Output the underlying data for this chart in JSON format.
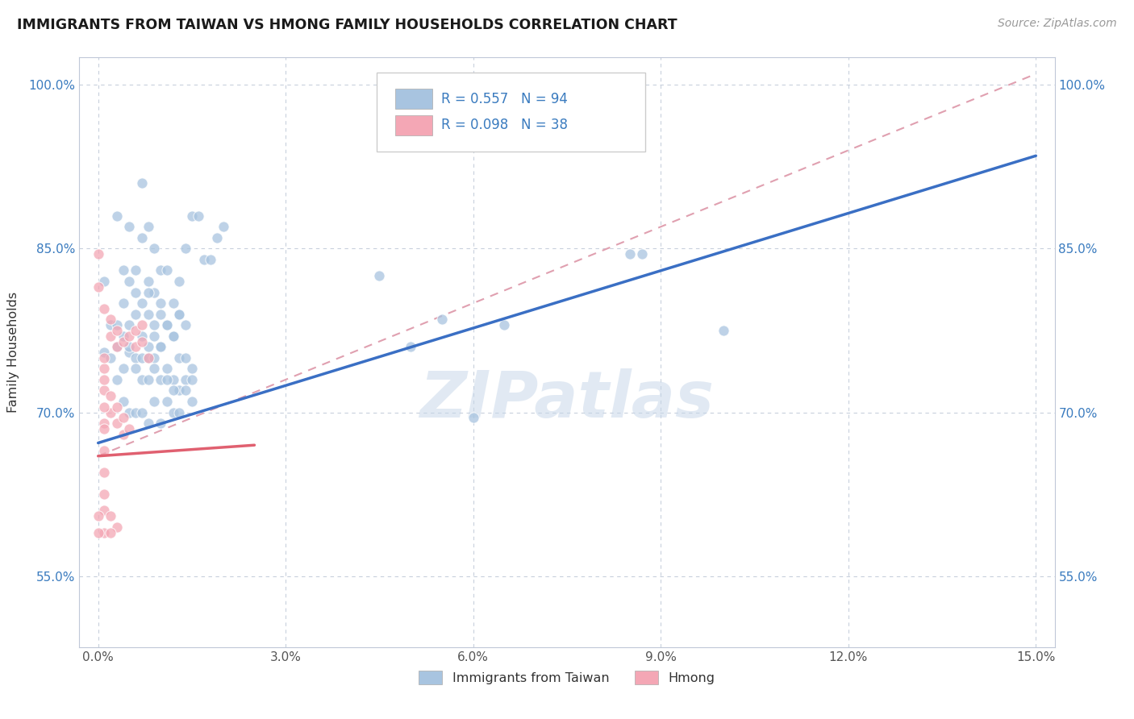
{
  "title": "IMMIGRANTS FROM TAIWAN VS HMONG FAMILY HOUSEHOLDS CORRELATION CHART",
  "source": "Source: ZipAtlas.com",
  "ylabel": "Family Households",
  "xlim": [
    -0.003,
    0.153
  ],
  "ylim": [
    0.485,
    1.025
  ],
  "xticks": [
    0.0,
    0.03,
    0.06,
    0.09,
    0.12,
    0.15
  ],
  "yticks": [
    0.55,
    0.7,
    0.85,
    1.0
  ],
  "ytick_labels": [
    "55.0%",
    "70.0%",
    "85.0%",
    "100.0%"
  ],
  "xtick_labels": [
    "0.0%",
    "3.0%",
    "6.0%",
    "9.0%",
    "12.0%",
    "15.0%"
  ],
  "taiwan_R": 0.557,
  "taiwan_N": 94,
  "hmong_R": 0.098,
  "hmong_N": 38,
  "taiwan_color": "#a8c4e0",
  "hmong_color": "#f4a7b5",
  "taiwan_line_color": "#3a6fc4",
  "hmong_line_color": "#e06070",
  "dashed_line_color": "#e0a0b0",
  "watermark_color": "#c5d5e8",
  "watermark": "ZIPatlas",
  "legend_label_taiwan": "Immigrants from Taiwan",
  "legend_label_hmong": "Hmong",
  "taiwan_line": [
    [
      0.0,
      0.672
    ],
    [
      0.15,
      0.935
    ]
  ],
  "hmong_line": [
    [
      0.0,
      0.66
    ],
    [
      0.025,
      0.67
    ]
  ],
  "dashed_line": [
    [
      0.0,
      0.66
    ],
    [
      0.15,
      1.01
    ]
  ],
  "taiwan_scatter": [
    [
      0.001,
      0.755
    ],
    [
      0.002,
      0.78
    ],
    [
      0.003,
      0.73
    ],
    [
      0.003,
      0.76
    ],
    [
      0.004,
      0.8
    ],
    [
      0.004,
      0.77
    ],
    [
      0.005,
      0.755
    ],
    [
      0.005,
      0.78
    ],
    [
      0.005,
      0.82
    ],
    [
      0.006,
      0.75
    ],
    [
      0.006,
      0.79
    ],
    [
      0.006,
      0.81
    ],
    [
      0.006,
      0.83
    ],
    [
      0.007,
      0.75
    ],
    [
      0.007,
      0.77
    ],
    [
      0.007,
      0.8
    ],
    [
      0.007,
      0.73
    ],
    [
      0.008,
      0.73
    ],
    [
      0.008,
      0.76
    ],
    [
      0.008,
      0.79
    ],
    [
      0.008,
      0.82
    ],
    [
      0.008,
      0.75
    ],
    [
      0.009,
      0.75
    ],
    [
      0.009,
      0.78
    ],
    [
      0.009,
      0.81
    ],
    [
      0.009,
      0.74
    ],
    [
      0.01,
      0.76
    ],
    [
      0.01,
      0.8
    ],
    [
      0.01,
      0.73
    ],
    [
      0.01,
      0.76
    ],
    [
      0.01,
      0.79
    ],
    [
      0.011,
      0.78
    ],
    [
      0.011,
      0.71
    ],
    [
      0.011,
      0.74
    ],
    [
      0.011,
      0.78
    ],
    [
      0.012,
      0.77
    ],
    [
      0.012,
      0.7
    ],
    [
      0.012,
      0.73
    ],
    [
      0.012,
      0.8
    ],
    [
      0.013,
      0.79
    ],
    [
      0.013,
      0.72
    ],
    [
      0.013,
      0.75
    ],
    [
      0.013,
      0.82
    ],
    [
      0.014,
      0.73
    ],
    [
      0.014,
      0.78
    ],
    [
      0.014,
      0.75
    ],
    [
      0.015,
      0.74
    ],
    [
      0.015,
      0.71
    ],
    [
      0.001,
      0.82
    ],
    [
      0.002,
      0.75
    ],
    [
      0.003,
      0.78
    ],
    [
      0.004,
      0.71
    ],
    [
      0.004,
      0.74
    ],
    [
      0.005,
      0.7
    ],
    [
      0.005,
      0.76
    ],
    [
      0.006,
      0.7
    ],
    [
      0.006,
      0.74
    ],
    [
      0.007,
      0.7
    ],
    [
      0.007,
      0.86
    ],
    [
      0.008,
      0.69
    ],
    [
      0.008,
      0.81
    ],
    [
      0.009,
      0.71
    ],
    [
      0.009,
      0.77
    ],
    [
      0.01,
      0.69
    ],
    [
      0.01,
      0.83
    ],
    [
      0.011,
      0.73
    ],
    [
      0.011,
      0.83
    ],
    [
      0.012,
      0.72
    ],
    [
      0.012,
      0.77
    ],
    [
      0.013,
      0.7
    ],
    [
      0.013,
      0.79
    ],
    [
      0.014,
      0.72
    ],
    [
      0.014,
      0.85
    ],
    [
      0.015,
      0.73
    ],
    [
      0.015,
      0.88
    ],
    [
      0.016,
      0.88
    ],
    [
      0.017,
      0.84
    ],
    [
      0.018,
      0.84
    ],
    [
      0.019,
      0.86
    ],
    [
      0.02,
      0.87
    ],
    [
      0.007,
      0.91
    ],
    [
      0.008,
      0.87
    ],
    [
      0.009,
      0.85
    ],
    [
      0.003,
      0.88
    ],
    [
      0.004,
      0.83
    ],
    [
      0.005,
      0.87
    ],
    [
      0.06,
      0.695
    ],
    [
      0.055,
      0.785
    ],
    [
      0.065,
      0.78
    ],
    [
      0.085,
      0.845
    ],
    [
      0.087,
      0.845
    ],
    [
      0.1,
      0.775
    ],
    [
      0.045,
      0.825
    ],
    [
      0.05,
      0.76
    ]
  ],
  "hmong_scatter": [
    [
      0.0,
      0.845
    ],
    [
      0.0,
      0.815
    ],
    [
      0.001,
      0.795
    ],
    [
      0.001,
      0.72
    ],
    [
      0.001,
      0.74
    ],
    [
      0.001,
      0.69
    ],
    [
      0.002,
      0.77
    ],
    [
      0.002,
      0.785
    ],
    [
      0.002,
      0.7
    ],
    [
      0.002,
      0.715
    ],
    [
      0.003,
      0.76
    ],
    [
      0.003,
      0.775
    ],
    [
      0.003,
      0.69
    ],
    [
      0.003,
      0.705
    ],
    [
      0.004,
      0.765
    ],
    [
      0.004,
      0.68
    ],
    [
      0.004,
      0.695
    ],
    [
      0.005,
      0.77
    ],
    [
      0.005,
      0.685
    ],
    [
      0.006,
      0.76
    ],
    [
      0.006,
      0.775
    ],
    [
      0.007,
      0.765
    ],
    [
      0.007,
      0.78
    ],
    [
      0.008,
      0.75
    ],
    [
      0.001,
      0.75
    ],
    [
      0.001,
      0.73
    ],
    [
      0.001,
      0.705
    ],
    [
      0.001,
      0.685
    ],
    [
      0.001,
      0.665
    ],
    [
      0.001,
      0.645
    ],
    [
      0.001,
      0.625
    ],
    [
      0.001,
      0.61
    ],
    [
      0.001,
      0.59
    ],
    [
      0.002,
      0.605
    ],
    [
      0.0,
      0.605
    ],
    [
      0.0,
      0.59
    ],
    [
      0.003,
      0.595
    ],
    [
      0.002,
      0.59
    ]
  ]
}
